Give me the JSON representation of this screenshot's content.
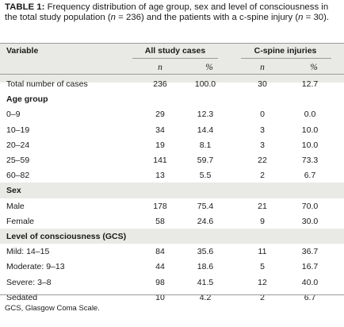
{
  "caption": {
    "label": "TABLE 1:",
    "p1": " Frequency distribution of age group, sex and level of consciousness in the total study population (",
    "n1": "n",
    "p2": " = 236) and the patients with a c-spine injury (",
    "n2": "n",
    "p3": " = 30)."
  },
  "header": {
    "variable": "Variable",
    "all_cases": "All study cases",
    "cspine": "C-spine injuries",
    "n": "n",
    "pct": "%"
  },
  "total": {
    "label": "Total number of cases",
    "n1": "236",
    "p1": "100.0",
    "n2": "30",
    "p2": "12.7"
  },
  "sections": [
    {
      "title": "Age group",
      "rows": [
        {
          "label": "0–9",
          "n1": "29",
          "p1": "12.3",
          "n2": "0",
          "p2": "0.0"
        },
        {
          "label": "10–19",
          "n1": "34",
          "p1": "14.4",
          "n2": "3",
          "p2": "10.0"
        },
        {
          "label": "20–24",
          "n1": "19",
          "p1": "8.1",
          "n2": "3",
          "p2": "10.0"
        },
        {
          "label": "25–59",
          "n1": "141",
          "p1": "59.7",
          "n2": "22",
          "p2": "73.3"
        },
        {
          "label": "60–82",
          "n1": "13",
          "p1": "5.5",
          "n2": "2",
          "p2": "6.7"
        }
      ]
    },
    {
      "title": "Sex",
      "rows": [
        {
          "label": "Male",
          "n1": "178",
          "p1": "75.4",
          "n2": "21",
          "p2": "70.0"
        },
        {
          "label": "Female",
          "n1": "58",
          "p1": "24.6",
          "n2": "9",
          "p2": "30.0"
        }
      ]
    },
    {
      "title": "Level of consciousness (GCS)",
      "rows": [
        {
          "label": "Mild: 14–15",
          "n1": "84",
          "p1": "35.6",
          "n2": "11",
          "p2": "36.7"
        },
        {
          "label": "Moderate: 9–13",
          "n1": "44",
          "p1": "18.6",
          "n2": "5",
          "p2": "16.7"
        },
        {
          "label": "Severe: 3–8",
          "n1": "98",
          "p1": "41.5",
          "n2": "12",
          "p2": "40.0"
        },
        {
          "label": "Sedated",
          "n1": "10",
          "p1": "4.2",
          "n2": "2",
          "p2": "6.7"
        }
      ]
    }
  ],
  "footnote": "GCS, Glasgow Coma Scale."
}
